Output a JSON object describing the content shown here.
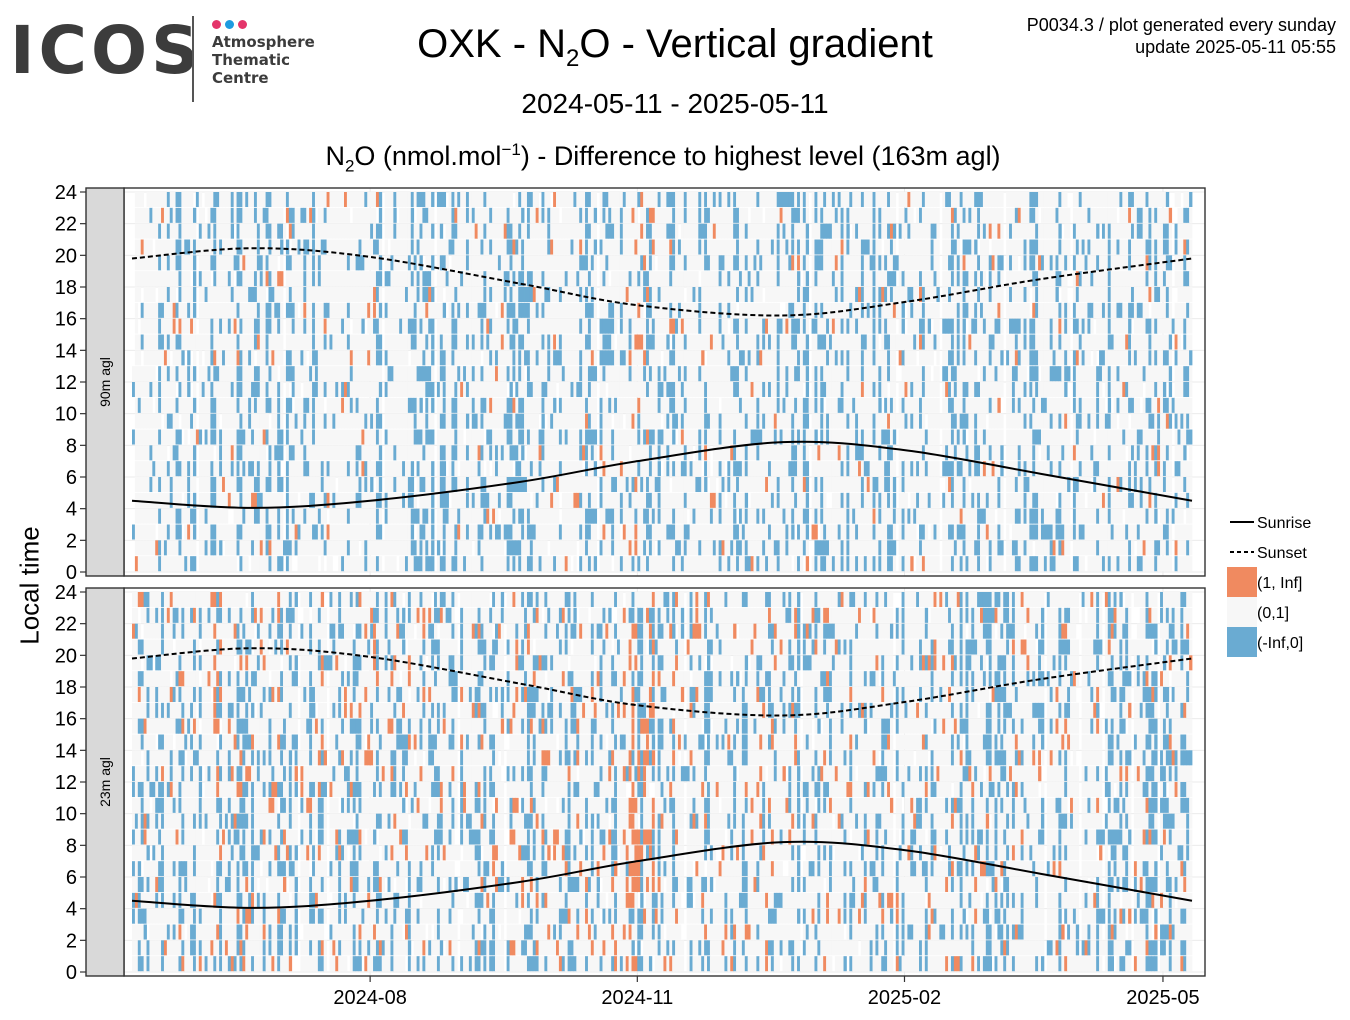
{
  "header": {
    "logo_text": "ICOS",
    "logo_sub": [
      "Atmosphere",
      "Thematic",
      "Centre"
    ],
    "logo_dot_colors": [
      "#e4356a",
      "#1e9be0",
      "#e4356a"
    ],
    "title_pre": "OXK - N",
    "title_sub": "2",
    "title_post": "O - Vertical gradient",
    "date_range": "2024-05-11 - 2025-05-11",
    "subtitle_pre": "N",
    "subtitle_sub": "2",
    "subtitle_mid": "O (nmol.mol",
    "subtitle_sup": "−1",
    "subtitle_post": ") - Difference to highest level (163m agl)",
    "meta_line1": "P0034.3 / plot generated every sunday",
    "meta_line2": "update  2025-05-11 05:55"
  },
  "chart_data": {
    "type": "heatmap",
    "ylabel": "Local time",
    "x_range": [
      "2024-05-11",
      "2025-05-11"
    ],
    "x_ticks": [
      "2024-08",
      "2024-11",
      "2025-02",
      "2025-05"
    ],
    "x_tick_dates": [
      "2024-08-01",
      "2024-11-01",
      "2025-02-01",
      "2025-05-01"
    ],
    "y_ticks": [
      0,
      2,
      4,
      6,
      8,
      10,
      12,
      14,
      16,
      18,
      20,
      22,
      24
    ],
    "ylim": [
      0,
      24
    ],
    "panels": [
      {
        "label": "90m agl",
        "seed": 12345,
        "pos_rate": 0.02
      },
      {
        "label": "23m agl",
        "seed": 67890,
        "pos_rate": 0.07
      }
    ],
    "categories": [
      {
        "label": "(1, Inf]",
        "color": "#f08a60"
      },
      {
        "label": "(0,1]",
        "color": "#f7f7f7"
      },
      {
        "label": "(-Inf,0]",
        "color": "#6aabd2"
      }
    ],
    "lines": [
      {
        "label": "Sunrise",
        "style": "solid",
        "dates": [
          "2024-05-11",
          "2024-06-21",
          "2024-08-01",
          "2024-09-22",
          "2024-11-01",
          "2024-12-21",
          "2025-02-01",
          "2025-03-20",
          "2025-05-11"
        ],
        "values": [
          4.5,
          4.05,
          4.5,
          5.7,
          7.0,
          8.2,
          7.7,
          6.2,
          4.5
        ]
      },
      {
        "label": "Sunset",
        "style": "dashed",
        "dates": [
          "2024-05-11",
          "2024-06-21",
          "2024-08-01",
          "2024-09-22",
          "2024-11-01",
          "2024-12-21",
          "2025-02-01",
          "2025-03-20",
          "2025-05-11"
        ],
        "values": [
          19.8,
          20.45,
          19.9,
          18.2,
          16.85,
          16.2,
          17.05,
          18.5,
          19.8
        ]
      }
    ],
    "legend_position": "right",
    "grid": true
  }
}
